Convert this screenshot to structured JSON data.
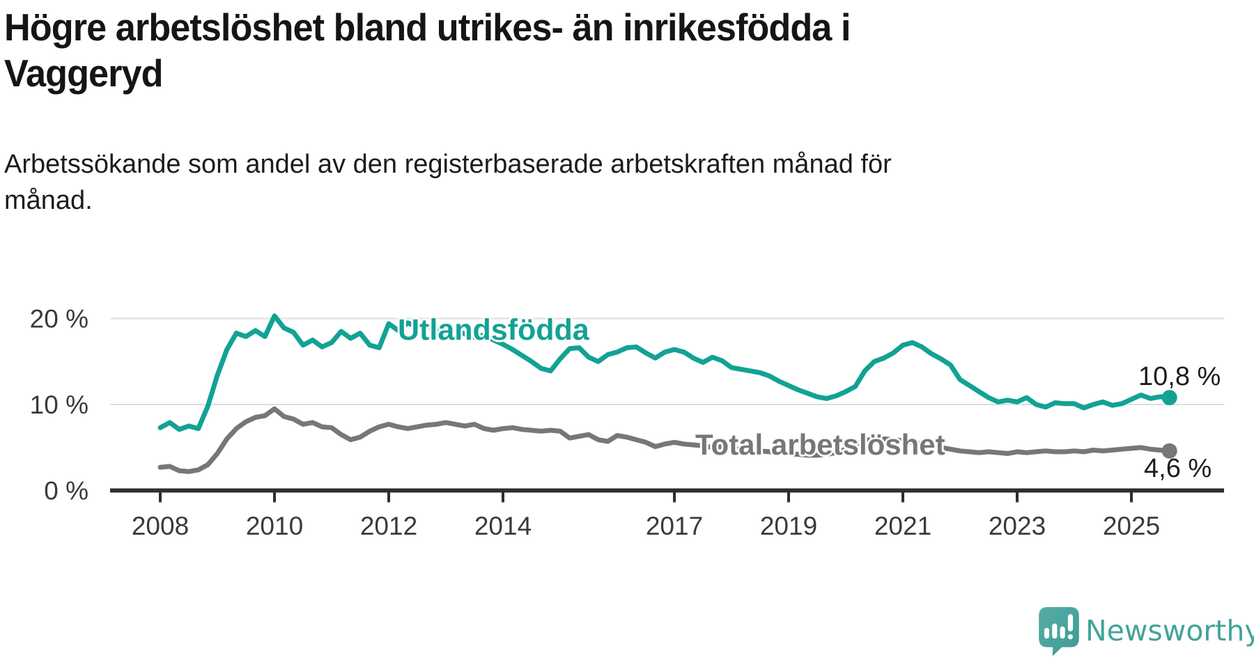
{
  "header": {
    "title_line1": "Högre arbetslöshet bland utrikes- än inrikesfödda i",
    "title_line2": "Vaggeryd",
    "subtitle_line1": "Arbetssökande som andel av den registerbaserade arbetskraften månad för",
    "subtitle_line2": "månad."
  },
  "chart_data": {
    "type": "line",
    "title": "Högre arbetslöshet bland utrikes- än inrikesfödda i Vaggeryd",
    "subtitle": "Arbetssökande som andel av den registerbaserade arbetskraften månad för månad.",
    "x_unit": "decimal year, monthly series sampled every 2 months",
    "x_start": 2008.0,
    "x_step": 0.166667,
    "x_tick_years": [
      2008,
      2010,
      2012,
      2014,
      2017,
      2019,
      2021,
      2023,
      2025
    ],
    "y_ticks": [
      {
        "value": 0,
        "label": "0 %"
      },
      {
        "value": 10,
        "label": "10 %"
      },
      {
        "value": 20,
        "label": "20 %"
      }
    ],
    "ylim": [
      0,
      22
    ],
    "xlim": [
      2007.1,
      2026.6
    ],
    "grid": "horizontal",
    "legend_position": "inline-labels-on-lines",
    "series": [
      {
        "name": "Utlandsfödda",
        "color": "#12A294",
        "end_value": 10.8,
        "end_value_label": "10,8 %",
        "values": [
          7.3,
          7.9,
          7.1,
          7.5,
          7.2,
          9.8,
          13.4,
          16.4,
          18.3,
          17.9,
          18.6,
          17.9,
          20.3,
          18.9,
          18.4,
          16.9,
          17.5,
          16.7,
          17.2,
          18.5,
          17.7,
          18.3,
          16.9,
          16.6,
          19.4,
          18.6,
          19.5,
          19.0,
          19.2,
          18.7,
          18.4,
          18.7,
          18.2,
          17.8,
          18.1,
          17.5,
          17.0,
          16.4,
          15.7,
          15.0,
          14.2,
          13.9,
          15.3,
          16.5,
          16.6,
          15.5,
          15.0,
          15.8,
          16.1,
          16.6,
          16.7,
          16.0,
          15.4,
          16.1,
          16.4,
          16.1,
          15.4,
          14.9,
          15.5,
          15.1,
          14.3,
          14.1,
          13.9,
          13.7,
          13.3,
          12.7,
          12.2,
          11.7,
          11.3,
          10.9,
          10.7,
          11.0,
          11.5,
          12.1,
          13.9,
          15.0,
          15.4,
          16.0,
          16.9,
          17.2,
          16.7,
          15.9,
          15.3,
          14.6,
          12.9,
          12.2,
          11.5,
          10.8,
          10.3,
          10.5,
          10.3,
          10.8,
          10.0,
          9.7,
          10.2,
          10.1,
          10.1,
          9.6,
          10.0,
          10.3,
          9.9,
          10.1,
          10.6,
          11.1,
          10.7,
          10.9,
          10.8
        ]
      },
      {
        "name": "Total arbetslöshet",
        "color": "#76767B",
        "end_value": 4.6,
        "end_value_label": "4,6 %",
        "values": [
          2.7,
          2.8,
          2.3,
          2.2,
          2.4,
          3.0,
          4.3,
          6.0,
          7.2,
          8.0,
          8.5,
          8.7,
          9.5,
          8.6,
          8.3,
          7.7,
          7.9,
          7.4,
          7.3,
          6.5,
          5.9,
          6.2,
          6.9,
          7.4,
          7.7,
          7.4,
          7.2,
          7.4,
          7.6,
          7.7,
          7.9,
          7.7,
          7.5,
          7.7,
          7.2,
          7.0,
          7.2,
          7.3,
          7.1,
          7.0,
          6.9,
          7.0,
          6.9,
          6.1,
          6.3,
          6.5,
          5.9,
          5.7,
          6.4,
          6.2,
          5.9,
          5.6,
          5.1,
          5.4,
          5.6,
          5.4,
          5.3,
          5.2,
          5.0,
          5.1,
          4.9,
          4.8,
          4.7,
          4.6,
          4.5,
          4.4,
          4.3,
          4.2,
          4.1,
          4.1,
          4.2,
          4.4,
          4.8,
          5.4,
          5.8,
          6.0,
          6.0,
          5.9,
          5.8,
          5.6,
          5.4,
          5.2,
          5.0,
          4.8,
          4.6,
          4.5,
          4.4,
          4.5,
          4.4,
          4.3,
          4.5,
          4.4,
          4.5,
          4.6,
          4.5,
          4.5,
          4.6,
          4.5,
          4.7,
          4.6,
          4.7,
          4.8,
          4.9,
          5.0,
          4.8,
          4.7,
          4.6
        ]
      }
    ]
  },
  "branding": {
    "logo_text": "Newsworthy",
    "logo_color": "#43A29B",
    "logo_icon": "newsworthy-speech-bubble-bar-chart-icon"
  }
}
